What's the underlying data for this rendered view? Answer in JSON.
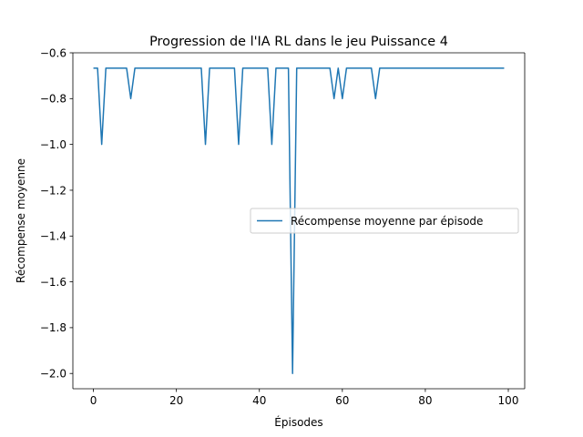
{
  "chart_data": {
    "type": "line",
    "title": "Progression de l'IA RL dans le jeu Puissance 4",
    "xlabel": "Épisodes",
    "ylabel": "Récompense moyenne",
    "xlim": [
      -4.95,
      103.95
    ],
    "ylim": [
      -2.0667,
      -0.6
    ],
    "xticks": [
      0,
      20,
      40,
      60,
      80,
      100
    ],
    "yticks": [
      -2.0,
      -1.8,
      -1.6,
      -1.4,
      -1.2,
      -1.0,
      -0.8,
      -0.6
    ],
    "xtick_labels": [
      "0",
      "20",
      "40",
      "60",
      "80",
      "100"
    ],
    "ytick_labels": [
      "−2.0",
      "−1.8",
      "−1.6",
      "−1.4",
      "−1.2",
      "−1.0",
      "−0.8",
      "−0.6"
    ],
    "legend_placement": "center-right",
    "series": [
      {
        "name": "Récompense moyenne par épisode",
        "color": "#1f77b4",
        "x": [
          0,
          1,
          2,
          3,
          4,
          5,
          6,
          7,
          8,
          9,
          10,
          11,
          12,
          13,
          14,
          15,
          16,
          17,
          18,
          19,
          20,
          21,
          22,
          23,
          24,
          25,
          26,
          27,
          28,
          29,
          30,
          31,
          32,
          33,
          34,
          35,
          36,
          37,
          38,
          39,
          40,
          41,
          42,
          43,
          44,
          45,
          46,
          47,
          48,
          49,
          50,
          51,
          52,
          53,
          54,
          55,
          56,
          57,
          58,
          59,
          60,
          61,
          62,
          63,
          64,
          65,
          66,
          67,
          68,
          69,
          70,
          71,
          72,
          73,
          74,
          75,
          76,
          77,
          78,
          79,
          80,
          81,
          82,
          83,
          84,
          85,
          86,
          87,
          88,
          89,
          90,
          91,
          92,
          93,
          94,
          95,
          96,
          97,
          98,
          99
        ],
        "values": [
          -0.667,
          -0.667,
          -1.0,
          -0.667,
          -0.667,
          -0.667,
          -0.667,
          -0.667,
          -0.667,
          -0.8,
          -0.667,
          -0.667,
          -0.667,
          -0.667,
          -0.667,
          -0.667,
          -0.667,
          -0.667,
          -0.667,
          -0.667,
          -0.667,
          -0.667,
          -0.667,
          -0.667,
          -0.667,
          -0.667,
          -0.667,
          -1.0,
          -0.667,
          -0.667,
          -0.667,
          -0.667,
          -0.667,
          -0.667,
          -0.667,
          -1.0,
          -0.667,
          -0.667,
          -0.667,
          -0.667,
          -0.667,
          -0.667,
          -0.667,
          -1.0,
          -0.667,
          -0.667,
          -0.667,
          -0.667,
          -2.0,
          -0.667,
          -0.667,
          -0.667,
          -0.667,
          -0.667,
          -0.667,
          -0.667,
          -0.667,
          -0.667,
          -0.8,
          -0.667,
          -0.8,
          -0.667,
          -0.667,
          -0.667,
          -0.667,
          -0.667,
          -0.667,
          -0.667,
          -0.8,
          -0.667,
          -0.667,
          -0.667,
          -0.667,
          -0.667,
          -0.667,
          -0.667,
          -0.667,
          -0.667,
          -0.667,
          -0.667,
          -0.667,
          -0.667,
          -0.667,
          -0.667,
          -0.667,
          -0.667,
          -0.667,
          -0.667,
          -0.667,
          -0.667,
          -0.667,
          -0.667,
          -0.667,
          -0.667,
          -0.667,
          -0.667,
          -0.667,
          -0.667,
          -0.667,
          -0.667
        ]
      }
    ]
  }
}
